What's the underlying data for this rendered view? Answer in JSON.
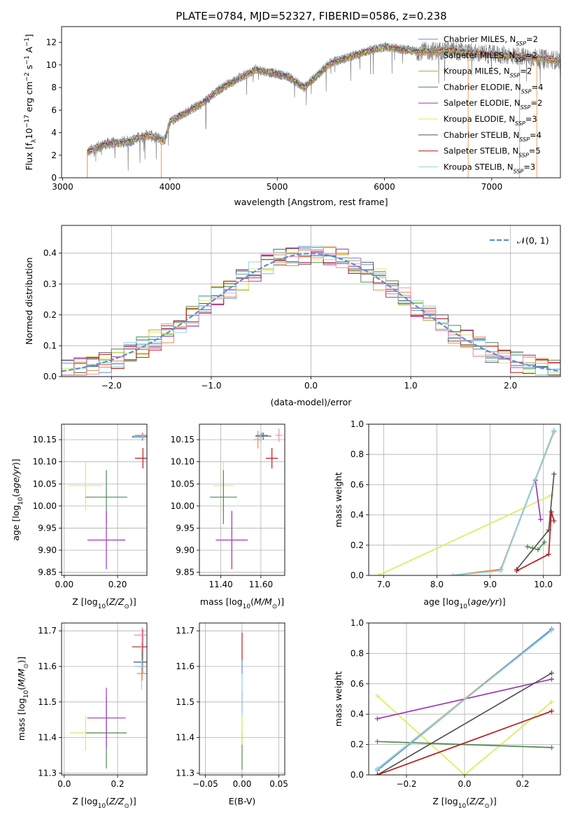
{
  "figure": {
    "title": "PLATE=0784, MJD=52327, FIBERID=0586, z=0.238"
  },
  "colors": {
    "chabrier_miles": "#5b8fd6",
    "salpeter_miles": "#f08a3e",
    "kroupa_miles": "#b9a43f",
    "chabrier_elodie": "#4f8a52",
    "salpeter_elodie": "#9b39b4",
    "kroupa_elodie": "#d8ee5a",
    "chabrier_stelib": "#555555",
    "salpeter_stelib": "#b81c1c",
    "kroupa_stelib": "#8fd6e0",
    "pink": "#f08cb4",
    "data": "#808080",
    "normal": "#5b8fd6"
  },
  "legend_labels": [
    [
      "Chabrier MILES, N",
      "=2"
    ],
    [
      "Salpeter MILES, N",
      "=2"
    ],
    [
      "Kroupa MILES, N",
      "=2"
    ],
    [
      "Chabrier ELODIE, N",
      "=4"
    ],
    [
      "Salpeter ELODIE, N",
      "=2"
    ],
    [
      "Kroupa ELODIE, N",
      "=3"
    ],
    [
      "Chabrier STELIB, N",
      "=4"
    ],
    [
      "Salpeter STELIB, N",
      "=5"
    ],
    [
      "Kroupa STELIB, N",
      "=3"
    ]
  ],
  "chart_data": [
    {
      "id": "spectrum",
      "type": "line",
      "title": "PLATE=0784, MJD=52327, FIBERID=0586, z=0.238",
      "xlabel": "wavelength [Angstrom, rest frame]",
      "ylabel": "Flux [f",
      "xlim": [
        2990,
        7640
      ],
      "ylim": [
        0,
        13.4
      ],
      "xticks": [
        3000,
        4000,
        5000,
        6000,
        7000
      ],
      "yticks": [
        0,
        2,
        4,
        6,
        8,
        10,
        12
      ],
      "grid": false,
      "legend": "upper right",
      "continuum_knots": [
        [
          3230,
          2.3
        ],
        [
          3400,
          3.0
        ],
        [
          3600,
          3.2
        ],
        [
          3800,
          3.8
        ],
        [
          3950,
          3.3
        ],
        [
          4000,
          5.0
        ],
        [
          4300,
          6.6
        ],
        [
          4500,
          8.1
        ],
        [
          4800,
          9.6
        ],
        [
          5100,
          9.0
        ],
        [
          5250,
          8.0
        ],
        [
          5500,
          10.2
        ],
        [
          5800,
          11.1
        ],
        [
          6000,
          11.6
        ],
        [
          6300,
          11.2
        ],
        [
          6600,
          11.3
        ],
        [
          6900,
          11.0
        ],
        [
          7250,
          10.8
        ],
        [
          7640,
          10.4
        ]
      ],
      "series": [
        {
          "name": "Chabrier MILES, NSSP=2",
          "key": "chabrier_miles"
        },
        {
          "name": "Salpeter MILES, NSSP=2",
          "key": "salpeter_miles"
        },
        {
          "name": "Kroupa MILES, NSSP=2",
          "key": "kroupa_miles"
        },
        {
          "name": "Chabrier ELODIE, NSSP=4",
          "key": "chabrier_elodie"
        },
        {
          "name": "Salpeter ELODIE, NSSP=2",
          "key": "salpeter_elodie"
        },
        {
          "name": "Kroupa ELODIE, NSSP=3",
          "key": "kroupa_elodie"
        },
        {
          "name": "Chabrier STELIB, NSSP=4",
          "key": "chabrier_stelib"
        },
        {
          "name": "Salpeter STELIB, NSSP=5",
          "key": "salpeter_stelib"
        },
        {
          "name": "Kroupa STELIB, NSSP=3",
          "key": "kroupa_stelib"
        }
      ]
    },
    {
      "id": "residuals",
      "type": "line",
      "xlabel": "(data-model)/error",
      "ylabel": "Normed distribution",
      "xlim": [
        -2.5,
        2.5
      ],
      "ylim": [
        0,
        0.49
      ],
      "xticks": [
        -2,
        -1,
        0,
        1,
        2
      ],
      "yticks": [
        0.0,
        0.1,
        0.2,
        0.3,
        0.4
      ],
      "grid": true,
      "legend": "upper right",
      "legend_label": "𝒩(0, 1)",
      "normal_curve": {
        "mean": 0,
        "sigma": 1
      }
    },
    {
      "id": "age_vs_Z",
      "type": "scatter",
      "xlabel": "Z [log10(Z/Z⊙)]",
      "ylabel": "age  [log10(age/yr)]",
      "xlim": [
        -0.01,
        0.31
      ],
      "ylim": [
        9.843,
        10.185
      ],
      "xticks": [
        0.0,
        0.2
      ],
      "yticks": [
        9.85,
        9.9,
        9.95,
        10.0,
        10.05,
        10.1,
        10.15
      ],
      "grid": true,
      "points": [
        {
          "key": "kroupa_elodie",
          "x": 0.08,
          "xerr": 0.064,
          "y": 10.046,
          "yerr": 0.056
        },
        {
          "key": "chabrier_elodie",
          "x": 0.158,
          "xerr": 0.078,
          "y": 10.02,
          "yerr": 0.061
        },
        {
          "key": "salpeter_elodie",
          "x": 0.158,
          "xerr": 0.071,
          "y": 9.923,
          "yerr": 0.066
        },
        {
          "key": "salpeter_stelib",
          "x": 0.295,
          "xerr": 0.03,
          "y": 10.108,
          "yerr": 0.023
        },
        {
          "key": "chabrier_stelib",
          "x": 0.293,
          "xerr": 0.038,
          "y": 10.156,
          "yerr": 0.008
        },
        {
          "key": "chabrier_miles",
          "x": 0.295,
          "xerr": 0.04,
          "y": 10.158,
          "yerr": 0.007
        },
        {
          "key": "salpeter_miles",
          "x": 0.292,
          "xerr": 0.027,
          "y": 10.16,
          "yerr": 0.006
        },
        {
          "key": "kroupa_stelib",
          "x": 0.294,
          "xerr": 0.033,
          "y": 10.157,
          "yerr": 0.007
        },
        {
          "key": "pink",
          "x": 0.292,
          "xerr": 0.02,
          "y": 10.16,
          "yerr": 0.005
        }
      ]
    },
    {
      "id": "age_vs_mass",
      "type": "scatter",
      "xlabel": "mass [log10(M/M⊙)]",
      "ylabel": "",
      "xlim": [
        11.293,
        11.719
      ],
      "ylim": [
        9.843,
        10.185
      ],
      "xticks": [
        11.4,
        11.6
      ],
      "yticks": [
        9.85,
        9.9,
        9.95,
        10.0,
        10.05,
        10.1,
        10.15
      ],
      "grid": true,
      "points": [
        {
          "key": "kroupa_elodie",
          "x": 11.413,
          "xerr": 0.05,
          "y": 10.046,
          "yerr": 0.056
        },
        {
          "key": "chabrier_elodie",
          "x": 11.413,
          "xerr": 0.068,
          "y": 10.02,
          "yerr": 0.061
        },
        {
          "key": "salpeter_elodie",
          "x": 11.455,
          "xerr": 0.08,
          "y": 9.923,
          "yerr": 0.066
        },
        {
          "key": "salpeter_stelib",
          "x": 11.655,
          "xerr": 0.03,
          "y": 10.108,
          "yerr": 0.023
        },
        {
          "key": "chabrier_stelib",
          "x": 11.612,
          "xerr": 0.04,
          "y": 10.158,
          "yerr": 0.008
        },
        {
          "key": "chabrier_miles",
          "x": 11.605,
          "xerr": 0.03,
          "y": 10.16,
          "yerr": 0.006
        },
        {
          "key": "salpeter_miles",
          "x": 11.585,
          "xerr": 0.02,
          "y": 10.15,
          "yerr": 0.02
        },
        {
          "key": "kroupa_stelib",
          "x": 11.598,
          "xerr": 0.018,
          "y": 10.155,
          "yerr": 0.01
        },
        {
          "key": "pink",
          "x": 11.69,
          "xerr": 0.018,
          "y": 10.16,
          "yerr": 0.015
        }
      ]
    },
    {
      "id": "weight_vs_age",
      "type": "line",
      "xlabel": "age  [log10(age/yr)]",
      "ylabel": "mass weight",
      "xlim": [
        6.72,
        10.32
      ],
      "ylim": [
        0,
        1.0
      ],
      "xticks": [
        7,
        8,
        9,
        10
      ],
      "yticks": [
        0.0,
        0.2,
        0.4,
        0.6,
        0.8,
        1.0
      ],
      "grid": true,
      "series": [
        {
          "key": "kroupa_elodie",
          "points": [
            [
              6.9,
              0.0
            ],
            [
              10.15,
              0.53
            ]
          ]
        },
        {
          "key": "salpeter_elodie",
          "points": [
            [
              9.85,
              0.63
            ],
            [
              9.95,
              0.37
            ]
          ]
        },
        {
          "key": "chabrier_elodie",
          "points": [
            [
              9.7,
              0.19
            ],
            [
              9.8,
              0.18
            ],
            [
              9.9,
              0.17
            ],
            [
              10.02,
              0.22
            ]
          ]
        },
        {
          "key": "chabrier_stelib",
          "points": [
            [
              9.5,
              0.04
            ],
            [
              10.1,
              0.3
            ],
            [
              10.2,
              0.67
            ]
          ]
        },
        {
          "key": "salpeter_stelib",
          "points": [
            [
              9.5,
              0.03
            ],
            [
              10.1,
              0.14
            ],
            [
              10.15,
              0.42
            ],
            [
              10.2,
              0.36
            ]
          ]
        },
        {
          "key": "chabrier_miles",
          "points": [
            [
              8.3,
              0.0
            ],
            [
              9.2,
              0.04
            ],
            [
              10.2,
              0.96
            ]
          ]
        },
        {
          "key": "salpeter_miles",
          "points": [
            [
              8.3,
              0.0
            ],
            [
              9.2,
              0.04
            ],
            [
              10.2,
              0.95
            ]
          ]
        },
        {
          "key": "kroupa_stelib",
          "points": [
            [
              8.3,
              0.0
            ],
            [
              9.2,
              0.03
            ],
            [
              10.2,
              0.96
            ]
          ]
        }
      ]
    },
    {
      "id": "mass_vs_Z",
      "type": "scatter",
      "xlabel": "Z [log10(Z/Z⊙)]",
      "ylabel": "mass [log10(M/M⊙)]",
      "xlim": [
        -0.01,
        0.31
      ],
      "ylim": [
        11.295,
        11.722
      ],
      "xticks": [
        0.0,
        0.2
      ],
      "yticks": [
        11.3,
        11.4,
        11.5,
        11.6,
        11.7
      ],
      "grid": true,
      "points": [
        {
          "key": "kroupa_elodie",
          "x": 0.08,
          "xerr": 0.06,
          "y": 11.413,
          "yerr": 0.05
        },
        {
          "key": "chabrier_elodie",
          "x": 0.158,
          "xerr": 0.076,
          "y": 11.413,
          "yerr": 0.1
        },
        {
          "key": "salpeter_elodie",
          "x": 0.158,
          "xerr": 0.072,
          "y": 11.455,
          "yerr": 0.085
        },
        {
          "key": "salpeter_stelib",
          "x": 0.294,
          "xerr": 0.04,
          "y": 11.655,
          "yerr": 0.05
        },
        {
          "key": "chabrier_stelib",
          "x": 0.294,
          "xerr": 0.034,
          "y": 11.612,
          "yerr": 0.03
        },
        {
          "key": "chabrier_miles",
          "x": 0.294,
          "xerr": 0.03,
          "y": 11.6,
          "yerr": 0.02
        },
        {
          "key": "kroupa_stelib",
          "x": 0.29,
          "xerr": 0.026,
          "y": 11.6,
          "yerr": 0.066
        },
        {
          "key": "salpeter_miles",
          "x": 0.292,
          "xerr": 0.02,
          "y": 11.58,
          "yerr": 0.02
        },
        {
          "key": "pink",
          "x": 0.292,
          "xerr": 0.03,
          "y": 11.688,
          "yerr": 0.022
        }
      ]
    },
    {
      "id": "mass_vs_ebv",
      "type": "scatter",
      "xlabel": "E(B-V)",
      "ylabel": "",
      "xlim": [
        -0.058,
        0.058
      ],
      "ylim": [
        11.295,
        11.722
      ],
      "xticks": [
        -0.05,
        0.0,
        0.05
      ],
      "xtick_labels": [
        "−0.05",
        "0.00",
        "0.05"
      ],
      "yticks": [
        11.3,
        11.4,
        11.5,
        11.6,
        11.7
      ],
      "grid": true,
      "points": [
        {
          "key": "salpeter_stelib",
          "x": 0.0,
          "y": 11.655,
          "yerr": 0.04
        },
        {
          "key": "salpeter_elodie",
          "x": 0.0,
          "y": 11.5,
          "yerr": 0.03
        },
        {
          "key": "kroupa_stelib",
          "x": 0.0,
          "y": 11.49,
          "yerr": 0.1
        },
        {
          "key": "chabrier_elodie",
          "x": 0.0,
          "y": 11.36,
          "yerr": 0.05
        },
        {
          "key": "kroupa_elodie",
          "x": 0.0,
          "y": 11.42,
          "yerr": 0.04
        },
        {
          "key": "chabrier_miles",
          "x": 0.0,
          "y": 11.6,
          "yerr": 0.02
        }
      ]
    },
    {
      "id": "weight_vs_Z",
      "type": "line",
      "xlabel": "Z [log10(Z/Z⊙)]",
      "ylabel": "mass weight",
      "xlim": [
        -0.33,
        0.33
      ],
      "ylim": [
        0,
        1.0
      ],
      "xticks": [
        -0.2,
        0.0,
        0.2
      ],
      "xtick_labels": [
        "−0.2",
        "0.0",
        "0.2"
      ],
      "yticks": [
        0.0,
        0.2,
        0.4,
        0.6,
        0.8,
        1.0
      ],
      "grid": true,
      "series": [
        {
          "key": "kroupa_elodie",
          "points": [
            [
              -0.3,
              0.52
            ],
            [
              0.0,
              0.0
            ],
            [
              0.3,
              0.48
            ]
          ]
        },
        {
          "key": "salpeter_elodie",
          "points": [
            [
              -0.3,
              0.37
            ],
            [
              0.3,
              0.63
            ]
          ]
        },
        {
          "key": "chabrier_elodie",
          "points": [
            [
              -0.3,
              0.22
            ],
            [
              0.3,
              0.18
            ]
          ]
        },
        {
          "key": "chabrier_stelib",
          "points": [
            [
              -0.3,
              0.0
            ],
            [
              0.3,
              0.67
            ]
          ]
        },
        {
          "key": "salpeter_stelib",
          "points": [
            [
              -0.3,
              0.0
            ],
            [
              0.3,
              0.42
            ]
          ]
        },
        {
          "key": "salpeter_miles",
          "points": [
            [
              -0.3,
              0.04
            ],
            [
              0.3,
              0.96
            ]
          ]
        },
        {
          "key": "chabrier_miles",
          "points": [
            [
              -0.3,
              0.03
            ],
            [
              0.3,
              0.96
            ]
          ]
        },
        {
          "key": "kroupa_stelib",
          "points": [
            [
              -0.3,
              0.04
            ],
            [
              0.3,
              0.95
            ]
          ]
        }
      ]
    }
  ]
}
